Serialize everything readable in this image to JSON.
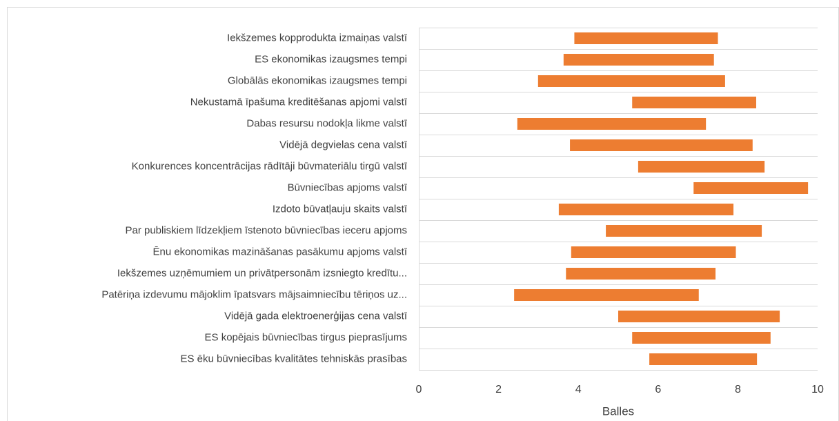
{
  "chart_data": {
    "type": "floating_bar",
    "categories": [
      "Iekšzemes kopprodukta izmaiņas valstī",
      "ES ekonomikas izaugsmes tempi",
      "Globālās ekonomikas izaugsmes tempi",
      "Nekustamā īpašuma kreditēšanas apjomi valstī",
      "Dabas resursu nodokļa likme valstī",
      "Vidējā degvielas cena valstī",
      "Konkurences koncentrācijas rādītāji būvmateriālu tirgū valstī",
      "Būvniecības apjoms valstī",
      "Izdoto būvatļauju skaits valstī",
      "Par publiskiem līdzekļiem īstenoto būvniecības ieceru apjoms",
      "Ēnu ekonomikas mazināšanas pasākumu apjoms valstī",
      "Iekšzemes uzņēmumiem un privātpersonām izsniegto kredītu...",
      "Patēriņa izdevumu mājoklim īpatsvars mājsaimniecību tēriņos uz...",
      "Vidējā gada elektroenerģijas cena valstī",
      "ES kopējais būvniecības tirgus pieprasījums",
      "ES ēku būvniecības kvalitātes tehniskās prasības"
    ],
    "low": [
      3.9,
      3.63,
      2.99,
      5.35,
      2.47,
      3.79,
      5.5,
      6.89,
      3.51,
      4.69,
      3.82,
      3.69,
      2.39,
      5.0,
      5.35,
      5.78
    ],
    "high": [
      7.5,
      7.4,
      7.68,
      8.46,
      7.2,
      8.37,
      8.67,
      9.76,
      7.89,
      8.6,
      7.95,
      7.44,
      7.02,
      9.05,
      8.82,
      8.48
    ],
    "color": "#ed7d31",
    "xlabel": "Balles",
    "xlim": [
      0,
      10
    ],
    "xticks": [
      0,
      2,
      4,
      6,
      8,
      10
    ]
  }
}
